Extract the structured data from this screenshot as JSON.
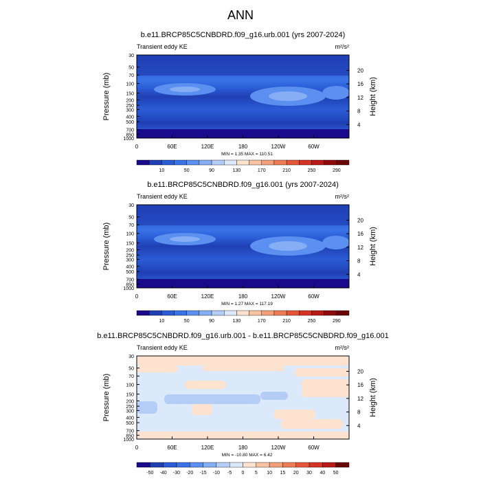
{
  "page": {
    "title": "ANN"
  },
  "chart_data": [
    {
      "type": "heatmap",
      "title": "b.e11.BRCP85C5CNBDRD.f09_g16.urb.001 (yrs 2007-2024)",
      "left_label": "Transient eddy KE",
      "units": "m²/s²",
      "ylabel": "Pressure (mb)",
      "y2label": "Height (km)",
      "x_ticks": [
        "0",
        "60E",
        "120E",
        "180",
        "120W",
        "60W"
      ],
      "x_tick_values": [
        0,
        60,
        120,
        180,
        240,
        300
      ],
      "xlim": [
        0,
        360
      ],
      "y_ticks": [
        "30",
        "50",
        "70",
        "100",
        "150",
        "200",
        "250",
        "300",
        "400",
        "500",
        "700",
        "850",
        "1000"
      ],
      "y_tick_values": [
        30,
        50,
        70,
        100,
        150,
        200,
        250,
        300,
        400,
        500,
        700,
        850,
        1000
      ],
      "ylim": [
        30,
        1000
      ],
      "y_scale": "log",
      "y2_ticks": [
        "20",
        "16",
        "12",
        "8",
        "4"
      ],
      "y2_tick_values": [
        20,
        16,
        12,
        8,
        4
      ],
      "stats": "MIN =   1.35  MAX = 110.51",
      "colorbar": {
        "labels": [
          "10",
          "50",
          "90",
          "130",
          "170",
          "210",
          "250",
          "290"
        ],
        "colors": [
          "#1a0a8c",
          "#1f3fb3",
          "#2a5cd6",
          "#3a73e8",
          "#5b8ff0",
          "#86aef4",
          "#b3cdf7",
          "#dce9fb",
          "#fde3cf",
          "#f8c3a2",
          "#f3a07a",
          "#ee7c56",
          "#e55638",
          "#d53324",
          "#b81a16",
          "#8e0b0b",
          "#6a0606"
        ]
      }
    },
    {
      "type": "heatmap",
      "title": "b.e11.BRCP85C5CNBDRD.f09_g16.001 (yrs 2007-2024)",
      "left_label": "Transient eddy KE",
      "units": "m²/s²",
      "ylabel": "Pressure (mb)",
      "y2label": "Height (km)",
      "x_ticks": [
        "0",
        "60E",
        "120E",
        "180",
        "120W",
        "60W"
      ],
      "x_tick_values": [
        0,
        60,
        120,
        180,
        240,
        300
      ],
      "xlim": [
        0,
        360
      ],
      "y_ticks": [
        "30",
        "50",
        "70",
        "100",
        "150",
        "200",
        "250",
        "300",
        "400",
        "500",
        "700",
        "850",
        "1000"
      ],
      "y_tick_values": [
        30,
        50,
        70,
        100,
        150,
        200,
        250,
        300,
        400,
        500,
        700,
        850,
        1000
      ],
      "ylim": [
        30,
        1000
      ],
      "y_scale": "log",
      "y2_ticks": [
        "20",
        "16",
        "12",
        "8",
        "4"
      ],
      "y2_tick_values": [
        20,
        16,
        12,
        8,
        4
      ],
      "stats": "MIN =   1.27  MAX = 117.19",
      "colorbar": {
        "labels": [
          "10",
          "50",
          "90",
          "130",
          "170",
          "210",
          "250",
          "290"
        ],
        "colors": [
          "#1a0a8c",
          "#1f3fb3",
          "#2a5cd6",
          "#3a73e8",
          "#5b8ff0",
          "#86aef4",
          "#b3cdf7",
          "#dce9fb",
          "#fde3cf",
          "#f8c3a2",
          "#f3a07a",
          "#ee7c56",
          "#e55638",
          "#d53324",
          "#b81a16",
          "#8e0b0b",
          "#6a0606"
        ]
      }
    },
    {
      "type": "heatmap",
      "title": "b.e11.BRCP85C5CNBDRD.f09_g16.urb.001 - b.e11.BRCP85C5CNBDRD.f09_g16.001",
      "left_label": "Transient eddy KE",
      "units": "m²/s²",
      "ylabel": "Pressure (mb)",
      "y2label": "Height (km)",
      "x_ticks": [
        "0",
        "60E",
        "120E",
        "180",
        "120W",
        "60W"
      ],
      "x_tick_values": [
        0,
        60,
        120,
        180,
        240,
        300
      ],
      "xlim": [
        0,
        360
      ],
      "y_ticks": [
        "30",
        "50",
        "70",
        "100",
        "150",
        "200",
        "250",
        "300",
        "400",
        "500",
        "700",
        "850",
        "1000"
      ],
      "y_tick_values": [
        30,
        50,
        70,
        100,
        150,
        200,
        250,
        300,
        400,
        500,
        700,
        850,
        1000
      ],
      "ylim": [
        30,
        1000
      ],
      "y_scale": "log",
      "y2_ticks": [
        "20",
        "16",
        "12",
        "8",
        "4"
      ],
      "y2_tick_values": [
        20,
        16,
        12,
        8,
        4
      ],
      "stats": "MIN = -10.80  MAX =   6.42",
      "colorbar": {
        "labels": [
          "-50",
          "-40",
          "-30",
          "-20",
          "-15",
          "-10",
          "-5",
          "0",
          "5",
          "10",
          "15",
          "20",
          "30",
          "40",
          "50"
        ],
        "colors": [
          "#1a0a8c",
          "#1f3fb3",
          "#2a5cd6",
          "#3a73e8",
          "#5b8ff0",
          "#86aef4",
          "#b3cdf7",
          "#dce9fb",
          "#fde3cf",
          "#f8c3a2",
          "#f3a07a",
          "#ee7c56",
          "#e55638",
          "#d53324",
          "#b81a16",
          "#6a0606"
        ]
      }
    }
  ]
}
